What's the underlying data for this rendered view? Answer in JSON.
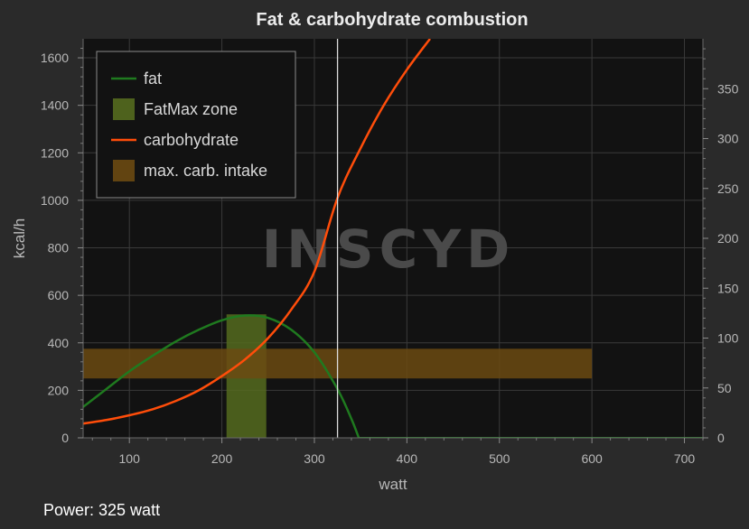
{
  "chart_data": {
    "type": "line",
    "title": "Fat & carbohydrate combustion",
    "xlabel": "watt",
    "ylabel": "kcal/h",
    "xlim": [
      50,
      720
    ],
    "ylim": [
      0,
      1680
    ],
    "y2lim": [
      0,
      400
    ],
    "x_ticks": [
      100,
      200,
      300,
      400,
      500,
      600,
      700
    ],
    "y_ticks": [
      0,
      200,
      400,
      600,
      800,
      1000,
      1200,
      1400,
      1600
    ],
    "y2_ticks": [
      0,
      50,
      100,
      150,
      200,
      250,
      300,
      350
    ],
    "grid": true,
    "legend_position": "top-left",
    "watermark": "INSCYD",
    "series": [
      {
        "name": "fat",
        "color": "#1f7a1f",
        "x": [
          50,
          75,
          100,
          125,
          150,
          175,
          200,
          225,
          250,
          275,
          300,
          325,
          340,
          348
        ],
        "y": [
          130,
          205,
          280,
          345,
          405,
          455,
          495,
          515,
          505,
          455,
          360,
          205,
          80,
          0
        ]
      },
      {
        "name": "carbohydrate",
        "color": "#ff4d0a",
        "x": [
          50,
          75,
          100,
          125,
          150,
          175,
          200,
          225,
          250,
          275,
          300,
          325,
          350,
          375,
          400,
          425
        ],
        "y": [
          60,
          75,
          95,
          120,
          155,
          200,
          260,
          330,
          420,
          540,
          700,
          1010,
          1220,
          1400,
          1550,
          1680
        ]
      },
      {
        "name": "fat baseline",
        "color": "#1f7a1f",
        "x": [
          348,
          720
        ],
        "y": [
          0,
          0
        ]
      }
    ],
    "zones": [
      {
        "name": "FatMax zone",
        "color": "#556b1f",
        "x_range": [
          205,
          248
        ],
        "y_range": [
          0,
          1680
        ]
      },
      {
        "name": "max. carb. intake",
        "color": "#6b4a12",
        "x_range": [
          50,
          600
        ],
        "y_range": [
          250,
          375
        ]
      }
    ],
    "marker_line": {
      "x": 325,
      "color": "#dddddd"
    }
  },
  "legend": {
    "items": [
      {
        "label": "fat",
        "kind": "line",
        "color": "#1f7a1f"
      },
      {
        "label": "FatMax zone",
        "kind": "box",
        "color": "#556b1f"
      },
      {
        "label": "carbohydrate",
        "kind": "line",
        "color": "#ff4d0a"
      },
      {
        "label": "max. carb. intake",
        "kind": "box",
        "color": "#6b4a12"
      }
    ]
  },
  "status": {
    "power_text": "Power: 325 watt"
  }
}
